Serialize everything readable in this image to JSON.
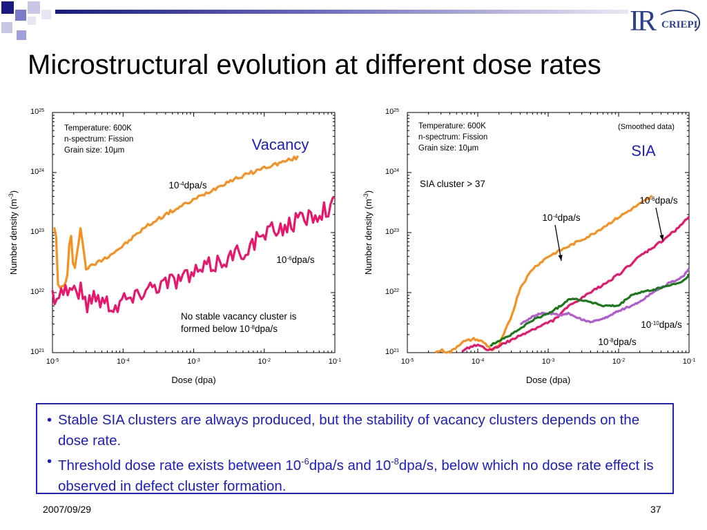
{
  "slide": {
    "title": "Microstructural evolution at different dose rates",
    "logo": {
      "ir": "IR",
      "criepi": "CRIEPI"
    },
    "bullets": [
      {
        "parts": [
          {
            "t": "Stable SIA clusters are always produced, but the stability of vacancy clusters depends on the dose rate."
          }
        ]
      },
      {
        "parts": [
          {
            "t": "Threshold dose rate exists between 10"
          },
          {
            "t": "-6",
            "sup": true
          },
          {
            "t": "dpa/s and 10"
          },
          {
            "t": "-8",
            "sup": true
          },
          {
            "t": "dpa/s, below which no dose rate effect is observed in defect cluster formation."
          }
        ]
      }
    ],
    "footer_date": "2007/09/29",
    "page_number": "37"
  },
  "chart_data": [
    {
      "type": "line",
      "title": "Vacancy",
      "xlabel": "Dose (dpa)",
      "ylabel": "Number density (m-3)",
      "xscale": "log",
      "yscale": "log",
      "xlim": [
        1e-05,
        0.1
      ],
      "ylim": [
        1e+21,
        1e+25
      ],
      "xticks": [
        {
          "b": "10",
          "e": "-5"
        },
        {
          "b": "10",
          "e": "-4"
        },
        {
          "b": "10",
          "e": "-3"
        },
        {
          "b": "10",
          "e": "-2"
        },
        {
          "b": "10",
          "e": "-1"
        }
      ],
      "yticks": [
        {
          "b": "10",
          "e": "21"
        },
        {
          "b": "10",
          "e": "22"
        },
        {
          "b": "10",
          "e": "23"
        },
        {
          "b": "10",
          "e": "24"
        },
        {
          "b": "10",
          "e": "25"
        }
      ],
      "info_lines": [
        "Temperature: 600K",
        "n-spectrum: Fission",
        "Grain size: 10μm"
      ],
      "annotations": [
        {
          "lines": [
            [
              {
                "t": "No stable vacancy cluster is"
              }
            ],
            [
              {
                "t": "formed below 10"
              },
              {
                "t": "-8",
                "sup": true
              },
              {
                "t": "dpa/s"
              }
            ]
          ]
        }
      ],
      "series": [
        {
          "name": "10-4dpa/s",
          "label": [
            {
              "t": "10"
            },
            {
              "t": "-4",
              "sup": true
            },
            {
              "t": "dpa/s"
            }
          ],
          "color": "#f7901e",
          "noise": 0.03,
          "x": [
            1.06e-05,
            1.1e-05,
            1.15e-05,
            1.2e-05,
            1.25e-05,
            1.3e-05,
            1.4e-05,
            1.6e-05,
            1.8e-05,
            2e-05,
            2.5e-05,
            3e-05,
            4e-05,
            6e-05,
            0.0001,
            0.0002,
            0.0004,
            0.001,
            0.003,
            0.01,
            0.03
          ],
          "y": [
            1.3e+23,
            4e+22,
            1.5e+23,
            1.2e+22,
            1.2e+22,
            1.2e+22,
            1.3e+22,
            1.5e+22,
            1.2e+23,
            2e+22,
            1.2e+23,
            2.5e+22,
            3e+22,
            4e+22,
            6e+22,
            1.2e+23,
            2e+23,
            3.5e+23,
            7e+23,
            1.2e+24,
            1.8e+24
          ]
        },
        {
          "name": "10-6dpa/s",
          "label": [
            {
              "t": "10"
            },
            {
              "t": "-6",
              "sup": true
            },
            {
              "t": "dpa/s"
            }
          ],
          "color": "#e8176b",
          "noise": 0.16,
          "x": [
            1e-05,
            1.3e-05,
            1.6e-05,
            2e-05,
            2.5e-05,
            3e-05,
            4e-05,
            5e-05,
            6e-05,
            8e-05,
            0.0001,
            0.00015,
            0.0002,
            0.0004,
            0.001,
            0.002,
            0.005,
            0.01,
            0.02,
            0.05,
            0.1
          ],
          "y": [
            9e+21,
            1e+22,
            1.2e+22,
            1.1e+22,
            1.1e+22,
            6e+21,
            1e+22,
            7e+21,
            7e+21,
            6e+21,
            8e+21,
            8e+21,
            1.2e+22,
            1.5e+22,
            2e+22,
            3e+22,
            5e+22,
            9e+22,
            1.3e+23,
            2e+23,
            3e+23
          ]
        }
      ]
    },
    {
      "type": "line",
      "title": "SIA",
      "subtitle": "(Smoothed data)",
      "xlabel": "Dose (dpa)",
      "ylabel": "Number density (m-3)",
      "xscale": "log",
      "yscale": "log",
      "xlim": [
        1e-05,
        0.1
      ],
      "ylim": [
        1e+21,
        1e+25
      ],
      "xticks": [
        {
          "b": "10",
          "e": "-5"
        },
        {
          "b": "10",
          "e": "-4"
        },
        {
          "b": "10",
          "e": "-3"
        },
        {
          "b": "10",
          "e": "-2"
        },
        {
          "b": "10",
          "e": "-1"
        }
      ],
      "yticks": [
        {
          "b": "10",
          "e": "21"
        },
        {
          "b": "10",
          "e": "22"
        },
        {
          "b": "10",
          "e": "23"
        },
        {
          "b": "10",
          "e": "24"
        },
        {
          "b": "10",
          "e": "25"
        }
      ],
      "info_lines": [
        "Temperature: 600K",
        "n-spectrum: Fission",
        "Grain size: 10μm"
      ],
      "annotations": [
        {
          "lines": [
            [
              {
                "t": "SIA cluster > 37"
              }
            ]
          ]
        }
      ],
      "series": [
        {
          "name": "10-4dpa/s",
          "label": [
            {
              "t": "10"
            },
            {
              "t": "-4",
              "sup": true
            },
            {
              "t": "dpa/s"
            }
          ],
          "color": "#f7901e",
          "noise": 0.02,
          "x": [
            2.5e-05,
            3e-05,
            4e-05,
            6e-05,
            9e-05,
            0.00012,
            0.00016,
            0.0002,
            0.0003,
            0.0004,
            0.0006,
            0.001,
            0.002,
            0.004,
            0.01,
            0.02,
            0.03
          ],
          "y": [
            1e+21,
            1.1e+21,
            1e+21,
            1.5e+21,
            1.7e+21,
            1.5e+21,
            1.1e+21,
            1.3e+21,
            4e+21,
            1.2e+22,
            2.5e+22,
            4e+22,
            6e+22,
            9e+22,
            1.8e+23,
            3e+23,
            4e+23
          ]
        },
        {
          "name": "10-6dpa/s",
          "label": [
            {
              "t": "10"
            },
            {
              "t": "-6",
              "sup": true
            },
            {
              "t": "dpa/s"
            }
          ],
          "color": "#e8176b",
          "noise": 0.02,
          "x": [
            6e-05,
            8e-05,
            0.0001,
            0.00015,
            0.0002,
            0.0003,
            0.0005,
            0.0008,
            0.0012,
            0.002,
            0.004,
            0.01,
            0.02,
            0.04,
            0.07,
            0.1
          ],
          "y": [
            1e+21,
            1.3e+21,
            1.3e+21,
            1.1e+21,
            1.3e+21,
            1.6e+21,
            2.2e+21,
            2.8e+21,
            3.5e+21,
            6e+21,
            1e+22,
            2e+22,
            4e+22,
            7e+22,
            1.2e+23,
            1.8e+23
          ]
        },
        {
          "name": "10-8dpa/s",
          "label": [
            {
              "t": "10"
            },
            {
              "t": "-8",
              "sup": true
            },
            {
              "t": "dpa/s"
            }
          ],
          "color": "#b45ad0",
          "noise": 0.015,
          "x": [
            0.0004,
            0.0006,
            0.0008,
            0.001,
            0.0015,
            0.002,
            0.003,
            0.004,
            0.006,
            0.01,
            0.015,
            0.02,
            0.03,
            0.05,
            0.08,
            0.1
          ],
          "y": [
            3e+21,
            4e+21,
            4.5e+21,
            4.5e+21,
            4.2e+21,
            4.5e+21,
            3.5e+21,
            3.3e+21,
            3.6e+21,
            5e+21,
            6e+21,
            7e+21,
            1e+22,
            1.4e+22,
            1.8e+22,
            2.5e+22
          ]
        },
        {
          "name": "10-10dpa/s",
          "label": [
            {
              "t": "10"
            },
            {
              "t": "-10",
              "sup": true
            },
            {
              "t": "dpa/s"
            }
          ],
          "color": "#1a7a1a",
          "noise": 0.015,
          "x": [
            0.00015,
            0.0002,
            0.00025,
            0.0003,
            0.0004,
            0.0005,
            0.0006,
            0.0008,
            0.001,
            0.0015,
            0.002,
            0.003,
            0.004,
            0.006,
            0.01,
            0.015,
            0.02,
            0.03,
            0.05,
            0.08,
            0.1
          ],
          "y": [
            1.3e+21,
            1.6e+21,
            1.8e+21,
            2e+21,
            2.5e+21,
            3e+21,
            3.5e+21,
            4e+21,
            4.5e+21,
            6e+21,
            8e+21,
            7.5e+21,
            7e+21,
            6e+21,
            6e+21,
            9e+21,
            1e+22,
            1.1e+22,
            1.3e+22,
            1.5e+22,
            2e+22
          ]
        }
      ]
    }
  ]
}
